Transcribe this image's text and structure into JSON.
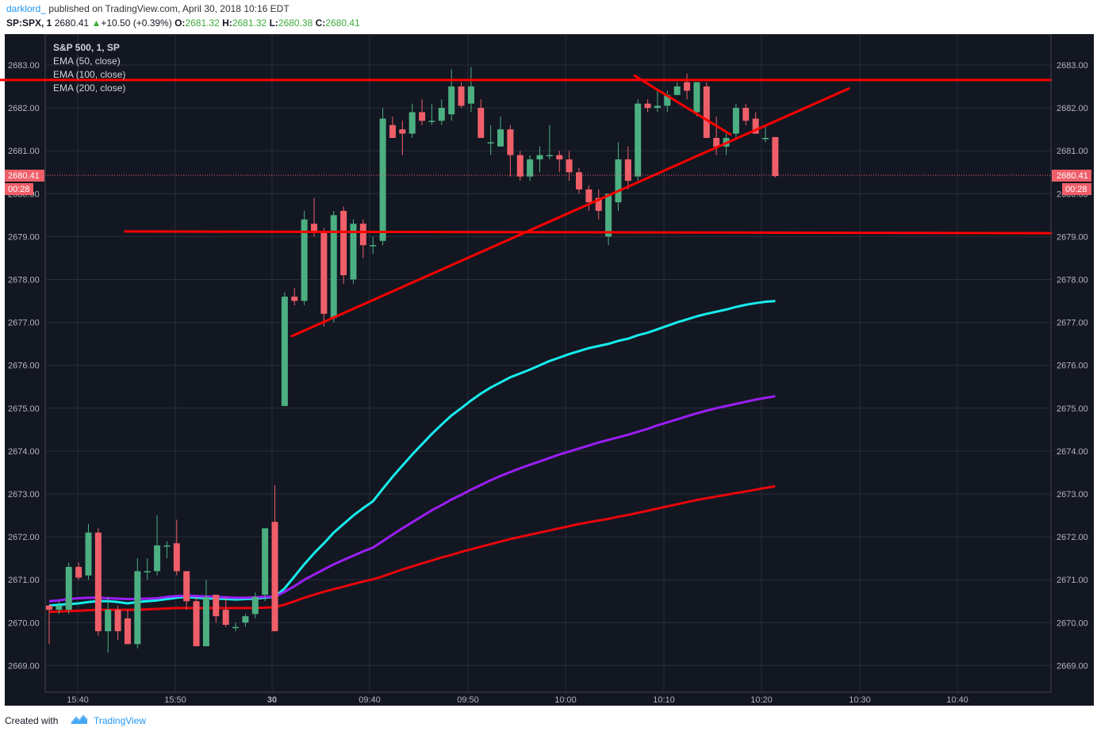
{
  "header": {
    "author": "darklord_",
    "published_text": "published on TradingView.com, April 30, 2018 10:16 EDT",
    "symbol": "SP:SPX, 1",
    "last": "2680.41",
    "change": "+10.50 (+0.39%)",
    "o_label": "O:",
    "o_value": "2681.32",
    "h_label": "H:",
    "h_value": "2681.32",
    "l_label": "L:",
    "l_value": "2680.38",
    "c_label": "C:",
    "c_value": "2680.41"
  },
  "legend": {
    "title": "S&P 500, 1, SP",
    "indicators": [
      "EMA (50, close)",
      "EMA (100, close)",
      "EMA (200, close)"
    ]
  },
  "price_label": {
    "value": "2680.41",
    "countdown": "00:28"
  },
  "footer": {
    "created_with": "Created with",
    "brand": "TradingView"
  },
  "colors": {
    "background": "#131722",
    "grid": "#2a2e39",
    "up": "#4caf82",
    "down": "#ef5f69",
    "ema50": "#17ecec",
    "ema100": "#9b1ef5",
    "ema200": "#e8060b",
    "drawing": "#ff0000"
  },
  "chart_data": {
    "type": "candlestick",
    "yaxis_ticks": [
      "2683.00",
      "2682.00",
      "2681.00",
      "2680.00",
      "2679.00",
      "2678.00",
      "2677.00",
      "2676.00",
      "2675.00",
      "2674.00",
      "2673.00",
      "2672.00",
      "2671.00",
      "2670.00",
      "2669.00"
    ],
    "xaxis_ticks": [
      "15:40",
      "15:50",
      "30",
      "09:40",
      "09:50",
      "10:00",
      "10:10",
      "10:20",
      "10:30",
      "10:40"
    ],
    "ylim": [
      2668.2,
      2683.6
    ],
    "candles": [
      [
        "15:36",
        2670.4,
        2670.4,
        2669.5,
        2670.3
      ],
      [
        "15:37",
        2670.3,
        2670.5,
        2670.2,
        2670.4
      ],
      [
        "15:38",
        2670.3,
        2671.4,
        2670.2,
        2671.3
      ],
      [
        "15:39",
        2671.3,
        2671.4,
        2671.0,
        2671.05
      ],
      [
        "15:40",
        2671.1,
        2672.3,
        2671.0,
        2672.1
      ],
      [
        "15:41",
        2672.1,
        2672.2,
        2669.7,
        2669.8
      ],
      [
        "15:42",
        2669.8,
        2670.6,
        2669.3,
        2670.3
      ],
      [
        "15:43",
        2670.3,
        2670.4,
        2669.6,
        2669.8
      ],
      [
        "15:44",
        2670.1,
        2670.3,
        2669.5,
        2669.5
      ],
      [
        "15:45",
        2669.5,
        2671.5,
        2669.4,
        2671.2
      ],
      [
        "15:46",
        2671.2,
        2671.5,
        2671.0,
        2671.2
      ],
      [
        "15:47",
        2671.2,
        2672.5,
        2671.1,
        2671.8
      ],
      [
        "15:48",
        2671.8,
        2671.9,
        2671.5,
        2671.8
      ],
      [
        "15:49",
        2671.85,
        2672.4,
        2671.1,
        2671.2
      ],
      [
        "15:50",
        2671.2,
        2671.2,
        2670.3,
        2670.5
      ],
      [
        "15:51",
        2670.5,
        2670.6,
        2669.45,
        2669.45
      ],
      [
        "15:52",
        2669.45,
        2671.0,
        2669.45,
        2670.6
      ],
      [
        "15:53",
        2670.65,
        2670.65,
        2670.0,
        2670.15
      ],
      [
        "15:54",
        2670.3,
        2670.6,
        2669.9,
        2669.95
      ],
      [
        "15:55",
        2669.9,
        2670.0,
        2669.8,
        2669.9
      ],
      [
        "15:56",
        2670.0,
        2670.2,
        2669.9,
        2670.15
      ],
      [
        "15:57",
        2670.2,
        2670.7,
        2670.1,
        2670.6
      ],
      [
        "15:58",
        2670.65,
        2672.2,
        2670.5,
        2672.2
      ],
      [
        "15:59",
        2672.35,
        2673.2,
        2669.8,
        2669.8
      ],
      [
        "09:30",
        2675.05,
        2677.7,
        2675.05,
        2677.6
      ],
      [
        "09:31",
        2677.6,
        2677.8,
        2677.4,
        2677.5
      ],
      [
        "09:32",
        2677.5,
        2679.6,
        2677.4,
        2679.4
      ],
      [
        "09:33",
        2679.3,
        2679.9,
        2679.0,
        2679.1
      ],
      [
        "09:34",
        2679.1,
        2679.2,
        2676.9,
        2677.2
      ],
      [
        "09:35",
        2677.1,
        2679.6,
        2677.0,
        2679.5
      ],
      [
        "09:36",
        2679.6,
        2679.7,
        2677.9,
        2678.1
      ],
      [
        "09:37",
        2678.0,
        2679.4,
        2677.9,
        2679.3
      ],
      [
        "09:38",
        2679.3,
        2679.4,
        2678.5,
        2678.8
      ],
      [
        "09:39",
        2678.8,
        2679.0,
        2678.6,
        2678.8
      ],
      [
        "09:40",
        2678.9,
        2682.0,
        2678.8,
        2681.75
      ],
      [
        "09:41",
        2681.6,
        2681.8,
        2681.3,
        2681.3
      ],
      [
        "09:42",
        2681.5,
        2681.7,
        2680.9,
        2681.4
      ],
      [
        "09:43",
        2681.4,
        2682.1,
        2681.3,
        2681.9
      ],
      [
        "09:44",
        2681.9,
        2682.2,
        2681.6,
        2681.7
      ],
      [
        "09:45",
        2681.7,
        2682.1,
        2681.6,
        2681.7
      ],
      [
        "09:46",
        2681.7,
        2682.2,
        2681.6,
        2682.0
      ],
      [
        "09:47",
        2681.85,
        2682.9,
        2681.7,
        2682.5
      ],
      [
        "09:48",
        2682.5,
        2682.6,
        2682.0,
        2682.05
      ],
      [
        "09:49",
        2682.1,
        2682.95,
        2681.9,
        2682.5
      ],
      [
        "09:50",
        2682.0,
        2682.2,
        2681.3,
        2681.3
      ],
      [
        "09:51",
        2681.2,
        2681.6,
        2680.9,
        2681.2
      ],
      [
        "09:52",
        2681.1,
        2681.8,
        2681.1,
        2681.5
      ],
      [
        "09:53",
        2681.5,
        2681.6,
        2680.4,
        2680.9
      ],
      [
        "09:54",
        2680.9,
        2681.0,
        2680.3,
        2680.4
      ],
      [
        "09:55",
        2680.4,
        2680.9,
        2680.3,
        2680.8
      ],
      [
        "09:56",
        2680.8,
        2681.1,
        2680.5,
        2680.9
      ],
      [
        "09:57",
        2680.9,
        2681.6,
        2680.8,
        2680.9
      ],
      [
        "09:58",
        2680.9,
        2681.0,
        2680.5,
        2680.8
      ],
      [
        "09:59",
        2680.8,
        2681.0,
        2680.3,
        2680.5
      ],
      [
        "10:00",
        2680.5,
        2680.6,
        2680.0,
        2680.1
      ],
      [
        "10:01",
        2680.1,
        2680.2,
        2679.6,
        2679.8
      ],
      [
        "10:02",
        2679.9,
        2680.1,
        2679.4,
        2679.6
      ],
      [
        "10:03",
        2679.0,
        2680.0,
        2678.8,
        2680.0
      ],
      [
        "10:04",
        2679.8,
        2681.2,
        2679.6,
        2680.8
      ],
      [
        "10:05",
        2680.8,
        2681.1,
        2680.1,
        2680.3
      ],
      [
        "10:06",
        2680.4,
        2682.2,
        2680.3,
        2682.1
      ],
      [
        "10:07",
        2682.1,
        2682.2,
        2681.9,
        2682.0
      ],
      [
        "10:08",
        2682.0,
        2682.4,
        2681.9,
        2682.05
      ],
      [
        "10:09",
        2682.05,
        2682.4,
        2681.9,
        2682.3
      ],
      [
        "10:10",
        2682.3,
        2682.6,
        2682.3,
        2682.5
      ],
      [
        "10:11",
        2682.6,
        2682.8,
        2682.2,
        2682.4
      ],
      [
        "10:12",
        2681.9,
        2682.6,
        2681.8,
        2682.6
      ],
      [
        "10:13",
        2682.5,
        2682.6,
        2681.3,
        2681.3
      ],
      [
        "10:14",
        2681.3,
        2681.8,
        2680.9,
        2681.1
      ],
      [
        "10:15",
        2681.1,
        2681.4,
        2680.9,
        2681.3
      ],
      [
        "10:16",
        2681.4,
        2682.1,
        2681.3,
        2682.0
      ],
      [
        "10:17",
        2682.0,
        2682.1,
        2681.6,
        2681.7
      ],
      [
        "10:18",
        2681.75,
        2681.9,
        2681.4,
        2681.4
      ],
      [
        "10:19",
        2681.3,
        2681.6,
        2681.2,
        2681.3
      ],
      [
        "10:20",
        2681.32,
        2681.32,
        2680.38,
        2680.41
      ]
    ],
    "ema_series": [
      {
        "name": "EMA (50, close)",
        "color": "#17ecec",
        "values": [
          2670.4,
          2670.42,
          2670.43,
          2670.45,
          2670.48,
          2670.5,
          2670.5,
          2670.48,
          2670.45,
          2670.48,
          2670.5,
          2670.52,
          2670.55,
          2670.58,
          2670.6,
          2670.58,
          2670.57,
          2670.56,
          2670.55,
          2670.54,
          2670.55,
          2670.56,
          2670.58,
          2670.6,
          2670.8,
          2671.08,
          2671.36,
          2671.62,
          2671.85,
          2672.1,
          2672.3,
          2672.5,
          2672.67,
          2672.83,
          2673.12,
          2673.4,
          2673.66,
          2673.92,
          2674.16,
          2674.4,
          2674.62,
          2674.83,
          2675.0,
          2675.18,
          2675.34,
          2675.48,
          2675.6,
          2675.72,
          2675.81,
          2675.9,
          2676.0,
          2676.1,
          2676.18,
          2676.26,
          2676.33,
          2676.4,
          2676.45,
          2676.5,
          2676.57,
          2676.62,
          2676.7,
          2676.76,
          2676.84,
          2676.92,
          2677.0,
          2677.07,
          2677.14,
          2677.2,
          2677.25,
          2677.3,
          2677.36,
          2677.41,
          2677.45,
          2677.48,
          2677.5
        ]
      },
      {
        "name": "EMA (100, close)",
        "color": "#9b1ef5",
        "values": [
          2670.5,
          2670.52,
          2670.55,
          2670.57,
          2670.58,
          2670.58,
          2670.57,
          2670.56,
          2670.55,
          2670.55,
          2670.56,
          2670.57,
          2670.6,
          2670.62,
          2670.63,
          2670.62,
          2670.61,
          2670.6,
          2670.59,
          2670.58,
          2670.58,
          2670.59,
          2670.6,
          2670.6,
          2670.72,
          2670.85,
          2671.0,
          2671.12,
          2671.24,
          2671.36,
          2671.46,
          2671.56,
          2671.66,
          2671.75,
          2671.9,
          2672.05,
          2672.2,
          2672.34,
          2672.48,
          2672.62,
          2672.74,
          2672.87,
          2672.98,
          2673.1,
          2673.21,
          2673.32,
          2673.42,
          2673.51,
          2673.6,
          2673.68,
          2673.76,
          2673.84,
          2673.92,
          2673.99,
          2674.06,
          2674.13,
          2674.2,
          2674.26,
          2674.32,
          2674.38,
          2674.45,
          2674.52,
          2674.6,
          2674.67,
          2674.74,
          2674.81,
          2674.88,
          2674.94,
          2675.0,
          2675.05,
          2675.1,
          2675.15,
          2675.2,
          2675.24,
          2675.28
        ]
      },
      {
        "name": "EMA (200, close)",
        "color": "#e8060b",
        "values": [
          2670.25,
          2670.26,
          2670.27,
          2670.28,
          2670.29,
          2670.3,
          2670.3,
          2670.3,
          2670.3,
          2670.3,
          2670.31,
          2670.32,
          2670.33,
          2670.34,
          2670.34,
          2670.34,
          2670.34,
          2670.34,
          2670.34,
          2670.34,
          2670.34,
          2670.34,
          2670.35,
          2670.36,
          2670.42,
          2670.5,
          2670.58,
          2670.65,
          2670.72,
          2670.78,
          2670.84,
          2670.9,
          2670.96,
          2671.01,
          2671.08,
          2671.16,
          2671.24,
          2671.31,
          2671.38,
          2671.45,
          2671.52,
          2671.58,
          2671.65,
          2671.71,
          2671.77,
          2671.83,
          2671.89,
          2671.95,
          2672.0,
          2672.05,
          2672.1,
          2672.15,
          2672.2,
          2672.25,
          2672.3,
          2672.34,
          2672.38,
          2672.42,
          2672.47,
          2672.51,
          2672.56,
          2672.61,
          2672.66,
          2672.71,
          2672.76,
          2672.81,
          2672.86,
          2672.9,
          2672.94,
          2672.98,
          2673.02,
          2673.06,
          2673.1,
          2673.14,
          2673.18
        ]
      }
    ],
    "drawings": [
      {
        "name": "resistance-line",
        "points": [
          [
            0,
            2682.65
          ],
          [
            1325,
            2682.65
          ]
        ],
        "xmode": "px"
      },
      {
        "name": "support-line",
        "points": [
          [
            158,
            2679.12
          ],
          [
            1325,
            2679.08
          ]
        ],
        "xmode": "px"
      },
      {
        "name": "ascending-trendline",
        "points": [
          [
            368,
            2676.68
          ],
          [
            1070,
            2682.45
          ]
        ],
        "xmode": "px"
      },
      {
        "name": "descending-trendline",
        "points": [
          [
            800,
            2682.75
          ],
          [
            921,
            2681.38
          ]
        ],
        "xmode": "px"
      }
    ]
  }
}
